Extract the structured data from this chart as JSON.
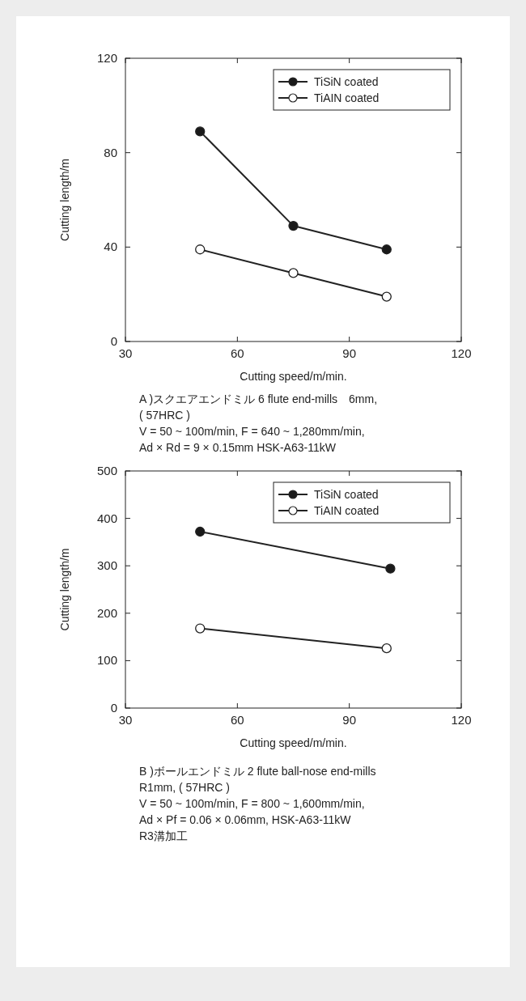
{
  "chart_data": [
    {
      "type": "line",
      "xlabel": "Cutting speed/m/min.",
      "ylabel": "Cutting length/m",
      "xlim": [
        30,
        120
      ],
      "xticks": [
        30,
        60,
        90,
        120
      ],
      "ylim": [
        0,
        120
      ],
      "yticks": [
        0,
        40,
        80,
        120
      ],
      "marker": "circle",
      "legend": "top right",
      "grid": false,
      "series": [
        {
          "name": "TiSiN coated",
          "color": "#1a1a1a",
          "x": [
            50,
            75,
            100
          ],
          "values": [
            89,
            49,
            39
          ]
        },
        {
          "name": "TiAIN coated",
          "color": "#ffffff",
          "x": [
            50,
            75,
            100
          ],
          "values": [
            39,
            29,
            19
          ]
        }
      ],
      "annotations": [
        "A )スクエアエンドミル 6 flute end-mills　6mm,",
        "( 57HRC )",
        "V = 50 ~ 100m/min, F = 640 ~ 1,280mm/min,",
        "Ad × Rd = 9 × 0.15mm HSK-A63-11kW"
      ]
    },
    {
      "type": "line",
      "xlabel": "Cutting speed/m/min.",
      "ylabel": "Cutting length/m",
      "xlim": [
        30,
        120
      ],
      "xticks": [
        30,
        60,
        90,
        120
      ],
      "ylim": [
        0,
        500
      ],
      "yticks": [
        0,
        100,
        200,
        300,
        400,
        500
      ],
      "marker": "circle",
      "legend": "top right",
      "grid": false,
      "series": [
        {
          "name": "TiSiN coated",
          "color": "#1a1a1a",
          "x": [
            50,
            101
          ],
          "values": [
            372,
            294
          ]
        },
        {
          "name": "TiAIN coated",
          "color": "#ffffff",
          "x": [
            50,
            100
          ],
          "values": [
            168,
            126
          ]
        }
      ],
      "annotations": [
        "B )ボールエンドミル 2 flute ball-nose end-mills",
        "R1mm, ( 57HRC )",
        "V = 50 ~ 100m/min, F = 800 ~ 1,600mm/min,",
        "Ad × Pf = 0.06 × 0.06mm, HSK-A63-11kW",
        "R3溝加工"
      ]
    }
  ]
}
